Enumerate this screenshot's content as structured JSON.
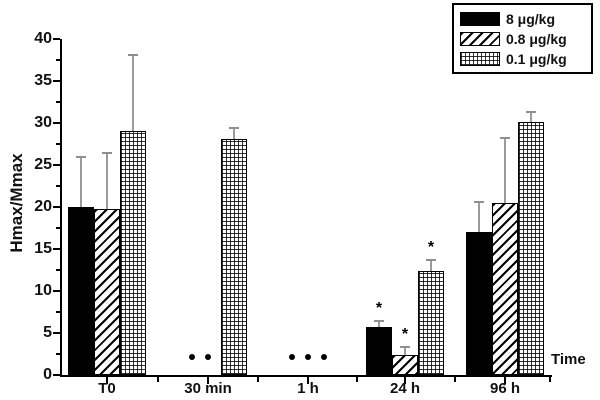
{
  "chart_data": {
    "type": "bar",
    "title": "",
    "xlabel": "Time",
    "ylabel": "Hmax/Mmax",
    "ylim": [
      0,
      40
    ],
    "yticks": [
      0,
      5,
      10,
      15,
      20,
      25,
      30,
      35,
      40
    ],
    "yticks_minor": [
      2.5,
      7.5,
      12.5,
      17.5,
      22.5,
      27.5,
      32.5,
      37.5
    ],
    "grid": "off",
    "legend_position": "top-right",
    "categories": [
      "T0",
      "30 min",
      "1 h",
      "24 h",
      "96 h"
    ],
    "series": [
      {
        "name": "8 μg/kg",
        "pattern": "solid",
        "values": [
          20.0,
          null,
          null,
          5.7,
          17.0
        ],
        "errors_up": [
          5.9,
          null,
          null,
          0.7,
          3.6
        ],
        "markers": [
          null,
          "dot",
          "dot",
          "asterisk",
          null
        ]
      },
      {
        "name": "0.8 μg/kg",
        "pattern": "diagonal-hatch",
        "values": [
          19.8,
          null,
          null,
          2.4,
          20.5
        ],
        "errors_up": [
          6.6,
          null,
          null,
          0.9,
          7.7
        ],
        "markers": [
          null,
          "dot",
          "dot",
          "asterisk",
          null
        ]
      },
      {
        "name": "0.1 μg/kg",
        "pattern": "fine-grid",
        "values": [
          29.0,
          28.1,
          null,
          12.4,
          30.1
        ],
        "errors_up": [
          9.1,
          1.3,
          null,
          1.3,
          1.2
        ],
        "markers": [
          null,
          null,
          "dot",
          "asterisk",
          null
        ]
      }
    ],
    "marker_meaning": {
      "dot": "value near zero / below detection",
      "asterisk": "significant difference"
    },
    "colors": {
      "bar_fill": "#000000",
      "bar_outline": "#000000",
      "error_bar": "#9b9b9b",
      "text": "#111111",
      "background": "#ffffff"
    }
  }
}
